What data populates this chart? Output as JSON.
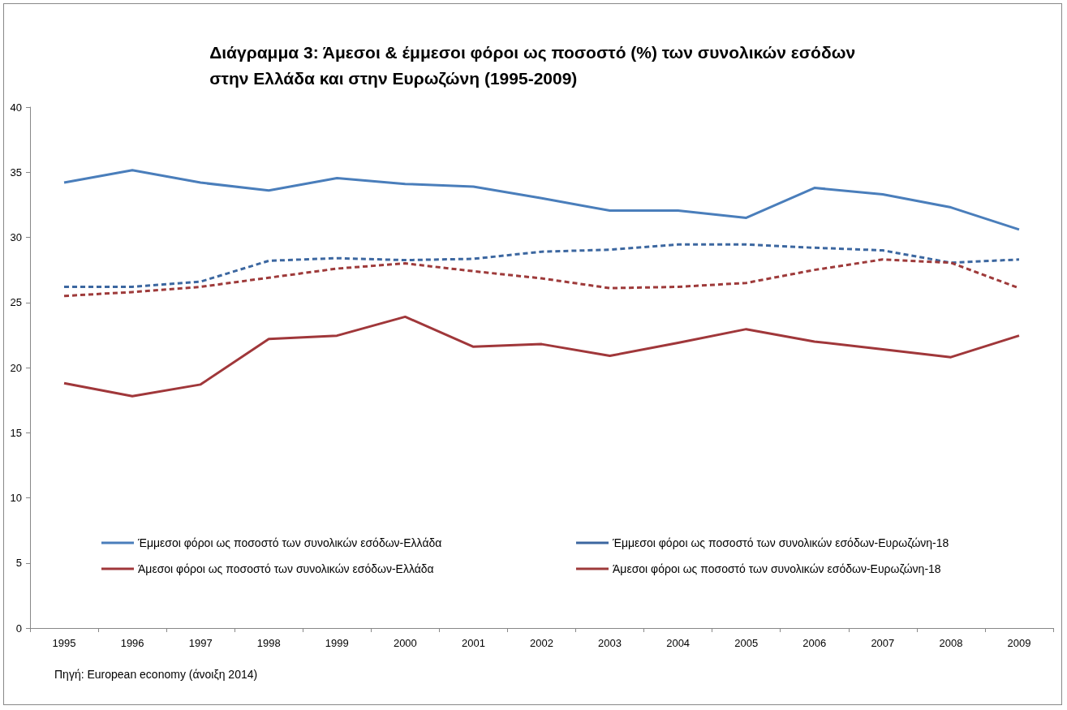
{
  "chart_data": {
    "type": "line",
    "title": "Διάγραμμα 3: Άμεσοι & έμμεσοι φόροι ως ποσοστό (%) των συνολικών εσόδων\nστην Ελλάδα και στην Ευρωζώνη (1995-2009)",
    "categories": [
      "1995",
      "1996",
      "1997",
      "1998",
      "1999",
      "2000",
      "2001",
      "2002",
      "2003",
      "2004",
      "2005",
      "2006",
      "2007",
      "2008",
      "2009"
    ],
    "series": [
      {
        "name": "Έμμεσοι φόροι ως ποσοστό των συνολικών εσόδων-Ελλάδα",
        "color": "#4a7ebb",
        "line_style": "solid",
        "values": [
          34.2,
          35.15,
          34.2,
          33.6,
          34.55,
          34.1,
          33.9,
          33.0,
          32.05,
          32.05,
          31.5,
          33.8,
          33.3,
          32.3,
          30.6
        ]
      },
      {
        "name": "Έμμεσοι φόροι ως ποσοστό των συνολικών εσόδων-Ευρωζώνη-18",
        "color": "#3c67a0",
        "line_style": "dashed",
        "values": [
          26.2,
          26.2,
          26.6,
          28.2,
          28.4,
          28.25,
          28.35,
          28.9,
          29.05,
          29.45,
          29.45,
          29.2,
          29.0,
          28.05,
          28.3
        ]
      },
      {
        "name": "Άμεσοι φόροι ως ποσοστό των συνολικών εσόδων-Ελλάδα",
        "color": "#a0373a",
        "line_style": "solid",
        "values": [
          18.8,
          17.8,
          18.7,
          22.2,
          22.45,
          23.9,
          21.6,
          21.8,
          20.9,
          21.9,
          22.95,
          22.0,
          21.4,
          20.8,
          22.45
        ]
      },
      {
        "name": "Άμεσοι φόροι ως ποσοστό των συνολικών εσόδων-Ευρωζώνη-18",
        "color": "#9e3a3a",
        "line_style": "dashed",
        "values": [
          25.5,
          25.8,
          26.2,
          26.9,
          27.6,
          28.0,
          27.4,
          26.85,
          26.1,
          26.2,
          26.5,
          27.5,
          28.3,
          28.05,
          26.1
        ]
      }
    ],
    "ylim": [
      0,
      40
    ],
    "yticks": [
      0,
      5,
      10,
      15,
      20,
      25,
      30,
      35,
      40
    ],
    "grid": false,
    "legend": "bottom",
    "marker": "none",
    "annotations": [
      "Πηγή: European economy (άνοιξη 2014)"
    ]
  }
}
